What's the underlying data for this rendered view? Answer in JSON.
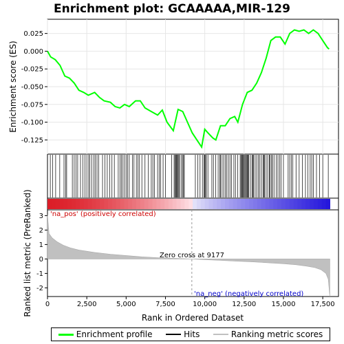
{
  "chart_data": {
    "type": "line",
    "title": "Enrichment plot: GCAAAAA,MIR-129",
    "xlabel": "Rank in Ordered Dataset",
    "ylabel_top": "Enrichment score (ES)",
    "ylabel_bottom": "Ranked list metric (PreRanked)",
    "xlim": [
      0,
      18500
    ],
    "es_ylim": [
      -0.145,
      0.045
    ],
    "metric_ylim": [
      -2.6,
      3.4
    ],
    "x_ticks": [
      0,
      2500,
      5000,
      7500,
      10000,
      12500,
      15000,
      17500
    ],
    "x_tick_labels": [
      "0",
      "2,500",
      "5,000",
      "7,500",
      "10,000",
      "12,500",
      "15,000",
      "17,500"
    ],
    "es_ticks": [
      0.025,
      0.0,
      -0.025,
      -0.05,
      -0.075,
      -0.1,
      -0.125
    ],
    "es_tick_labels": [
      "0.025",
      "0.000",
      "-0.025",
      "-0.050",
      "-0.075",
      "-0.100",
      "-0.125"
    ],
    "metric_ticks": [
      3,
      2,
      1,
      0,
      -1,
      -2
    ],
    "metric_tick_labels": [
      "3",
      "2",
      "1",
      "0",
      "-1",
      "-2"
    ],
    "es_curve": {
      "name": "Enrichment profile",
      "color": "#00ff00",
      "x": [
        0,
        200,
        500,
        800,
        1100,
        1400,
        1700,
        2000,
        2300,
        2600,
        3000,
        3300,
        3600,
        4000,
        4300,
        4600,
        4900,
        5200,
        5600,
        5900,
        6200,
        6600,
        7000,
        7300,
        7600,
        8000,
        8300,
        8600,
        8900,
        9200,
        9500,
        9800,
        10000,
        10200,
        10500,
        10700,
        11000,
        11300,
        11600,
        11900,
        12100,
        12400,
        12700,
        13000,
        13300,
        13600,
        13900,
        14200,
        14500,
        14800,
        15100,
        15400,
        15700,
        16000,
        16300,
        16600,
        16900,
        17200,
        17500,
        17800,
        17900
      ],
      "y": [
        0.0,
        -0.008,
        -0.012,
        -0.02,
        -0.035,
        -0.038,
        -0.045,
        -0.055,
        -0.058,
        -0.062,
        -0.058,
        -0.065,
        -0.07,
        -0.072,
        -0.078,
        -0.08,
        -0.075,
        -0.078,
        -0.07,
        -0.07,
        -0.08,
        -0.085,
        -0.09,
        -0.083,
        -0.1,
        -0.112,
        -0.082,
        -0.085,
        -0.1,
        -0.115,
        -0.125,
        -0.135,
        -0.11,
        -0.115,
        -0.122,
        -0.125,
        -0.105,
        -0.105,
        -0.095,
        -0.092,
        -0.1,
        -0.075,
        -0.058,
        -0.055,
        -0.045,
        -0.03,
        -0.01,
        0.015,
        0.02,
        0.02,
        0.01,
        0.025,
        0.03,
        0.028,
        0.03,
        0.025,
        0.03,
        0.025,
        0.015,
        0.005,
        0.003
      ]
    },
    "hits_x": [
      180,
      320,
      520,
      780,
      1050,
      1150,
      1220,
      1580,
      1700,
      1820,
      1920,
      2100,
      2250,
      2380,
      2500,
      2620,
      2700,
      2820,
      2950,
      3050,
      3150,
      3250,
      3500,
      3650,
      3800,
      3950,
      4100,
      4250,
      4500,
      4620,
      4700,
      4800,
      4900,
      5000,
      5100,
      5200,
      5400,
      5500,
      5650,
      5750,
      5850,
      6000,
      6200,
      6400,
      6600,
      6700,
      6800,
      7000,
      7100,
      7200,
      7350,
      7500,
      7900,
      8050,
      8100,
      8150,
      8200,
      8250,
      8300,
      8350,
      8400,
      8500,
      8600,
      8650,
      8700,
      9400,
      9550,
      9700,
      9850,
      9950,
      10000,
      10050,
      10100,
      10200,
      10450,
      10550,
      10700,
      10850,
      10950,
      11000,
      11100,
      11200,
      11300,
      11400,
      11500,
      11600,
      11700,
      11850,
      11950,
      12100,
      12250,
      12300,
      12350,
      12400,
      12450,
      12500,
      12550,
      12600,
      12650,
      12700,
      12750,
      12800,
      12900,
      13000,
      13050,
      13100,
      13200,
      13300,
      13400,
      13500,
      13600,
      13700,
      13750,
      13800,
      13900,
      14000,
      14100,
      14150,
      14250,
      14300,
      14400,
      14550,
      14650,
      14750,
      14850,
      15000,
      15300,
      15400,
      15500,
      15600,
      15800,
      16000,
      16200,
      16400,
      16550,
      16700,
      16800,
      16900,
      17100,
      17300,
      17500,
      17850
    ],
    "metric_curve": {
      "name": "Ranking metric scores",
      "color": "#c0c0c0",
      "x": [
        0,
        100,
        300,
        600,
        1000,
        1500,
        2000,
        3000,
        4000,
        5000,
        6000,
        7000,
        8000,
        9177,
        10000,
        11000,
        12000,
        13000,
        14000,
        15000,
        15800,
        16500,
        17000,
        17400,
        17700,
        17850,
        17950
      ],
      "y": [
        3.05,
        1.75,
        1.45,
        1.2,
        0.95,
        0.75,
        0.62,
        0.45,
        0.33,
        0.24,
        0.15,
        0.09,
        0.05,
        0.0,
        -0.05,
        -0.1,
        -0.15,
        -0.2,
        -0.26,
        -0.33,
        -0.4,
        -0.5,
        -0.6,
        -0.75,
        -1.0,
        -1.4,
        -2.6
      ]
    },
    "zero_cross_label": "Zero cross at 9177",
    "zero_cross_x": 9177,
    "pos_label": "'na_pos' (positively correlated)",
    "neg_label": "'na_neg' (negatively correlated)",
    "pos_color": "#cc0000",
    "neg_color": "#0000cc",
    "hits_color": "#000000"
  },
  "legend": {
    "items": [
      {
        "label": "Enrichment profile",
        "color": "#00ff00"
      },
      {
        "label": "Hits",
        "color": "#000000"
      },
      {
        "label": "Ranking metric scores",
        "color": "#c0c0c0"
      }
    ]
  }
}
